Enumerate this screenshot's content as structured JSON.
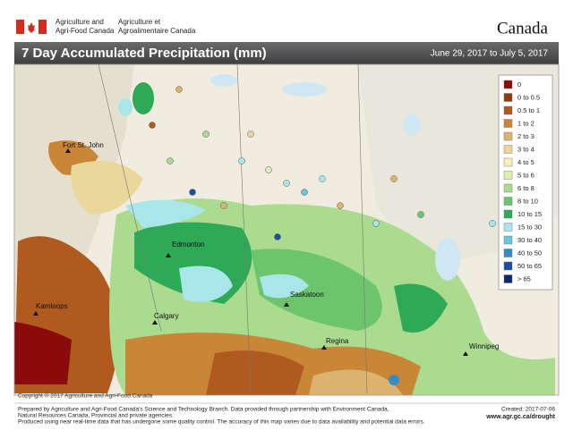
{
  "header": {
    "department_en": [
      "Agriculture and",
      "Agri-Food Canada"
    ],
    "department_fr": [
      "Agriculture et",
      "Agroalimentaire Canada"
    ],
    "wordmark": "Canada"
  },
  "title": "7 Day Accumulated Precipitation (mm)",
  "date_range": "June 29, 2017 to July 5, 2017",
  "legend": {
    "items": [
      {
        "label": "0",
        "color": "#8b0a0a"
      },
      {
        "label": "0 to 0.5",
        "color": "#8f3b12"
      },
      {
        "label": "0.5 to 1",
        "color": "#b05a20"
      },
      {
        "label": "1 to 2",
        "color": "#c98636"
      },
      {
        "label": "2 to 3",
        "color": "#dcb470"
      },
      {
        "label": "3 to 4",
        "color": "#ead79c"
      },
      {
        "label": "4 to 5",
        "color": "#f5f0bd"
      },
      {
        "label": "5 to 6",
        "color": "#dcefb1"
      },
      {
        "label": "6 to 8",
        "color": "#aadb8f"
      },
      {
        "label": "8 to 10",
        "color": "#6cc46c"
      },
      {
        "label": "10 to 15",
        "color": "#2ea956"
      },
      {
        "label": "15 to 30",
        "color": "#a8e6ea"
      },
      {
        "label": "30 to 40",
        "color": "#6ac6df"
      },
      {
        "label": "40 to 50",
        "color": "#3a8ac6"
      },
      {
        "label": "50 to 65",
        "color": "#1d4fa0"
      },
      {
        "label": "> 65",
        "color": "#0b2a6b"
      }
    ]
  },
  "cities": [
    "Fort St. John",
    "Edmonton",
    "Kamloops",
    "Calgary",
    "Saskatoon",
    "Regina",
    "Winnipeg"
  ],
  "footer": {
    "copyright": "Copyright © 2017 Agriculture and Agri-Food Canada",
    "notes": [
      "Prepared by Agriculture and Agri-Food Canada's Science and Technology Branch. Data provided through partnership with Environment Canada,",
      "Natural Resources Canada, Provincial and private agencies.",
      "Produced using near real-time data that has undergone some quality control. The accuracy of this map varies due to data availability and potential data errors."
    ],
    "created": "Created: 2017-07-06",
    "url": "www.agr.gc.ca/drought"
  }
}
